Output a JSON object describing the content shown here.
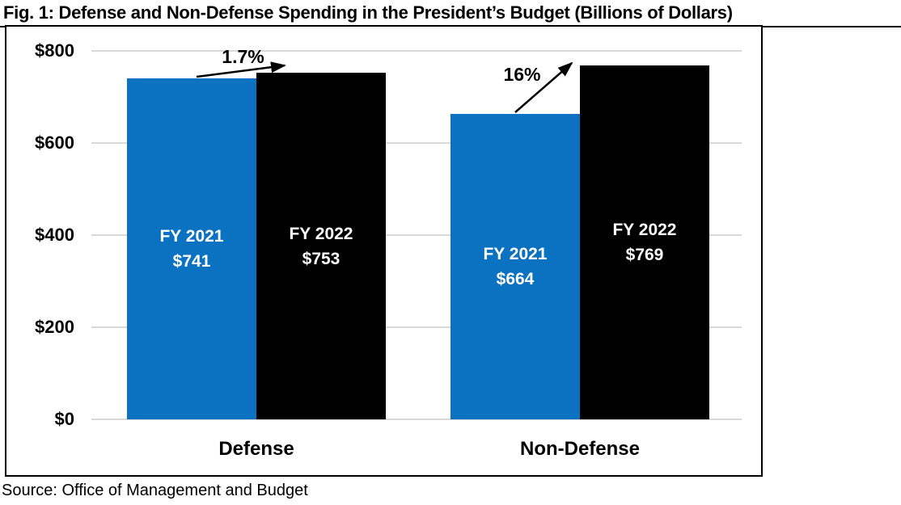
{
  "title": "Fig. 1: Defense and Non-Defense Spending in the President’s Budget (Billions of Dollars)",
  "source": "Source: Office of Management and Budget",
  "chart_data": {
    "type": "bar",
    "title": "Fig. 1: Defense and Non-Defense Spending in the President’s Budget (Billions of Dollars)",
    "unit": "Billions of Dollars",
    "categories": [
      "Defense",
      "Non-Defense"
    ],
    "series": [
      {
        "name": "FY 2021",
        "color": "#0b72c2",
        "label_color": "#ffffff",
        "values": [
          741,
          664
        ]
      },
      {
        "name": "FY 2022",
        "color": "#000000",
        "label_color": "#ffffff",
        "values": [
          753,
          769
        ]
      }
    ],
    "bar_value_prefix": "$",
    "bar_value_labels": [
      [
        "$741",
        "$664"
      ],
      [
        "$753",
        "$769"
      ]
    ],
    "growth_annotations": [
      {
        "label": "1.7%",
        "category": "Defense"
      },
      {
        "label": "16%",
        "category": "Non-Defense"
      }
    ],
    "y_axis": {
      "ticks": [
        "$800",
        "$600",
        "$400",
        "$200",
        "$0"
      ],
      "tick_values": [
        800,
        600,
        400,
        200,
        0
      ],
      "min": 0,
      "max": 800,
      "grid": true,
      "grid_color": "#d9d9d9"
    },
    "legend_position": "none",
    "source": "Source: Office of Management and Budget"
  }
}
